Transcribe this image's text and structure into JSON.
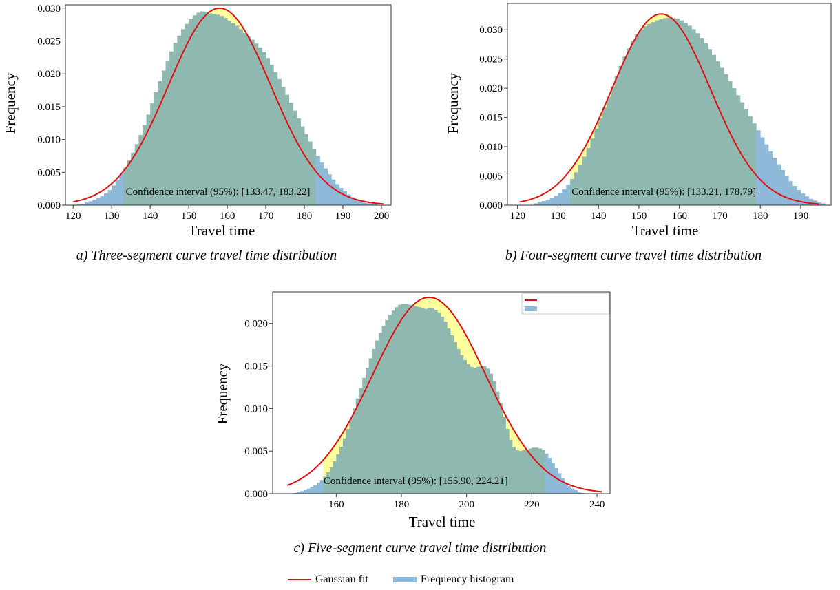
{
  "colors": {
    "histogram": "#8fb9d9",
    "confidence_fill": "#ffff9e",
    "overlap": "#8fb8b0",
    "gaussian": "#e01010"
  },
  "chart_data": [
    {
      "type": "bar",
      "panel": "a",
      "caption": "a) Three-segment curve travel time distribution",
      "xlabel": "Travel time",
      "ylabel": "Frequency",
      "xlim": [
        118,
        202.5
      ],
      "ylim": [
        0,
        0.0305
      ],
      "xticks": [
        "120",
        "130",
        "140",
        "150",
        "160",
        "170",
        "180",
        "190",
        "200"
      ],
      "yticks": [
        "0.000",
        "0.005",
        "0.010",
        "0.015",
        "0.020",
        "0.025",
        "0.030"
      ],
      "gaussian": {
        "mean": 158.0,
        "std": 13.3,
        "x_range": [
          120,
          200.5
        ]
      },
      "ci": [
        133.47,
        183.22
      ],
      "ci_label": "Confidence interval (95%): [133.47, 183.22]",
      "histogram": {
        "start": 121,
        "bin_width": 1,
        "values": [
          0.0001,
          0.0002,
          0.0004,
          0.0006,
          0.0008,
          0.0011,
          0.0014,
          0.0018,
          0.0023,
          0.003,
          0.0038,
          0.0047,
          0.0057,
          0.0068,
          0.008,
          0.0093,
          0.0107,
          0.0122,
          0.0138,
          0.0155,
          0.0172,
          0.0189,
          0.0205,
          0.022,
          0.0234,
          0.0247,
          0.0258,
          0.0268,
          0.0276,
          0.0283,
          0.0289,
          0.0293,
          0.0295,
          0.0294,
          0.0292,
          0.0291,
          0.029,
          0.0288,
          0.0285,
          0.0281,
          0.0277,
          0.0273,
          0.0268,
          0.0262,
          0.0257,
          0.0252,
          0.0246,
          0.024,
          0.0233,
          0.0224,
          0.0214,
          0.0203,
          0.0192,
          0.018,
          0.0168,
          0.0156,
          0.0144,
          0.0132,
          0.012,
          0.0108,
          0.0097,
          0.0086,
          0.0075,
          0.0065,
          0.0056,
          0.0047,
          0.0039,
          0.0032,
          0.0026,
          0.0021,
          0.0016,
          0.0012,
          0.0009,
          0.0006,
          0.0004,
          0.0003,
          0.0002,
          0.0001
        ]
      }
    },
    {
      "type": "bar",
      "panel": "b",
      "caption": "b) Four-segment curve travel time distribution",
      "xlabel": "Travel time",
      "ylabel": "Frequency",
      "xlim": [
        117.5,
        197.5
      ],
      "ylim": [
        0,
        0.0345
      ],
      "xticks": [
        "120",
        "130",
        "140",
        "150",
        "160",
        "170",
        "180",
        "190"
      ],
      "yticks": [
        "0.000",
        "0.005",
        "0.010",
        "0.015",
        "0.020",
        "0.025",
        "0.030"
      ],
      "gaussian": {
        "mean": 155.5,
        "std": 12.2,
        "x_range": [
          120.5,
          194.5
        ]
      },
      "ci": [
        133.21,
        178.79
      ],
      "ci_label": "Confidence interval (95%): [133.21, 178.79]",
      "histogram": {
        "start": 124,
        "bin_width": 1,
        "values": [
          0.0003,
          0.0005,
          0.0007,
          0.0009,
          0.0012,
          0.0016,
          0.0021,
          0.0027,
          0.0035,
          0.0045,
          0.0056,
          0.0069,
          0.0083,
          0.0098,
          0.0114,
          0.0131,
          0.0149,
          0.0167,
          0.0185,
          0.0203,
          0.0221,
          0.0238,
          0.0254,
          0.0268,
          0.0281,
          0.0292,
          0.03,
          0.0306,
          0.031,
          0.0313,
          0.0316,
          0.0318,
          0.032,
          0.0321,
          0.032,
          0.0319,
          0.0316,
          0.0312,
          0.0307,
          0.0301,
          0.0294,
          0.0286,
          0.0277,
          0.0267,
          0.0257,
          0.0246,
          0.0235,
          0.0224,
          0.0212,
          0.02,
          0.0188,
          0.0176,
          0.0164,
          0.0152,
          0.014,
          0.0128,
          0.0116,
          0.0104,
          0.0092,
          0.0081,
          0.007,
          0.006,
          0.005,
          0.0041,
          0.0033,
          0.0026,
          0.002,
          0.0015,
          0.0011,
          0.0008,
          0.0005,
          0.0003
        ]
      }
    },
    {
      "type": "bar",
      "panel": "c",
      "caption": "c) Five-segment curve travel time distribution",
      "xlabel": "Travel time",
      "ylabel": "Frequency",
      "xlim": [
        140.5,
        244
      ],
      "ylim": [
        0,
        0.0237
      ],
      "xticks": [
        "160",
        "180",
        "200",
        "220",
        "240"
      ],
      "yticks": [
        "0.000",
        "0.005",
        "0.010",
        "0.015",
        "0.020"
      ],
      "gaussian": {
        "mean": 188.5,
        "std": 17.3,
        "x_range": [
          145,
          241.5
        ]
      },
      "ci": [
        155.9,
        224.21
      ],
      "ci_label": "Confidence interval (95%): [155.90, 224.21]",
      "histogram": {
        "start": 147,
        "bin_width": 1,
        "values": [
          0.0001,
          0.0002,
          0.0003,
          0.0004,
          0.0006,
          0.0008,
          0.001,
          0.0013,
          0.0016,
          0.002,
          0.0025,
          0.0031,
          0.0038,
          0.0046,
          0.0055,
          0.0065,
          0.0076,
          0.0088,
          0.01,
          0.0112,
          0.0124,
          0.0136,
          0.0148,
          0.0159,
          0.017,
          0.018,
          0.0189,
          0.0197,
          0.0204,
          0.021,
          0.0215,
          0.0219,
          0.0222,
          0.0223,
          0.0223,
          0.0222,
          0.0221,
          0.022,
          0.0219,
          0.0218,
          0.0217,
          0.0218,
          0.0218,
          0.0216,
          0.0213,
          0.0208,
          0.0202,
          0.0194,
          0.0186,
          0.0178,
          0.017,
          0.0163,
          0.0157,
          0.0152,
          0.0149,
          0.0148,
          0.0149,
          0.015,
          0.015,
          0.0147,
          0.0141,
          0.0132,
          0.012,
          0.0106,
          0.009,
          0.0076,
          0.0063,
          0.0055,
          0.0051,
          0.005,
          0.0051,
          0.0052,
          0.0053,
          0.0054,
          0.0054,
          0.0053,
          0.0051,
          0.0047,
          0.0042,
          0.0036,
          0.003,
          0.0024,
          0.0018,
          0.0013,
          0.0009,
          0.0006,
          0.0004,
          0.0002,
          0.0001
        ]
      }
    }
  ],
  "legend": {
    "line_label": "Gaussian fit",
    "hist_label": "Frequency histogram"
  }
}
